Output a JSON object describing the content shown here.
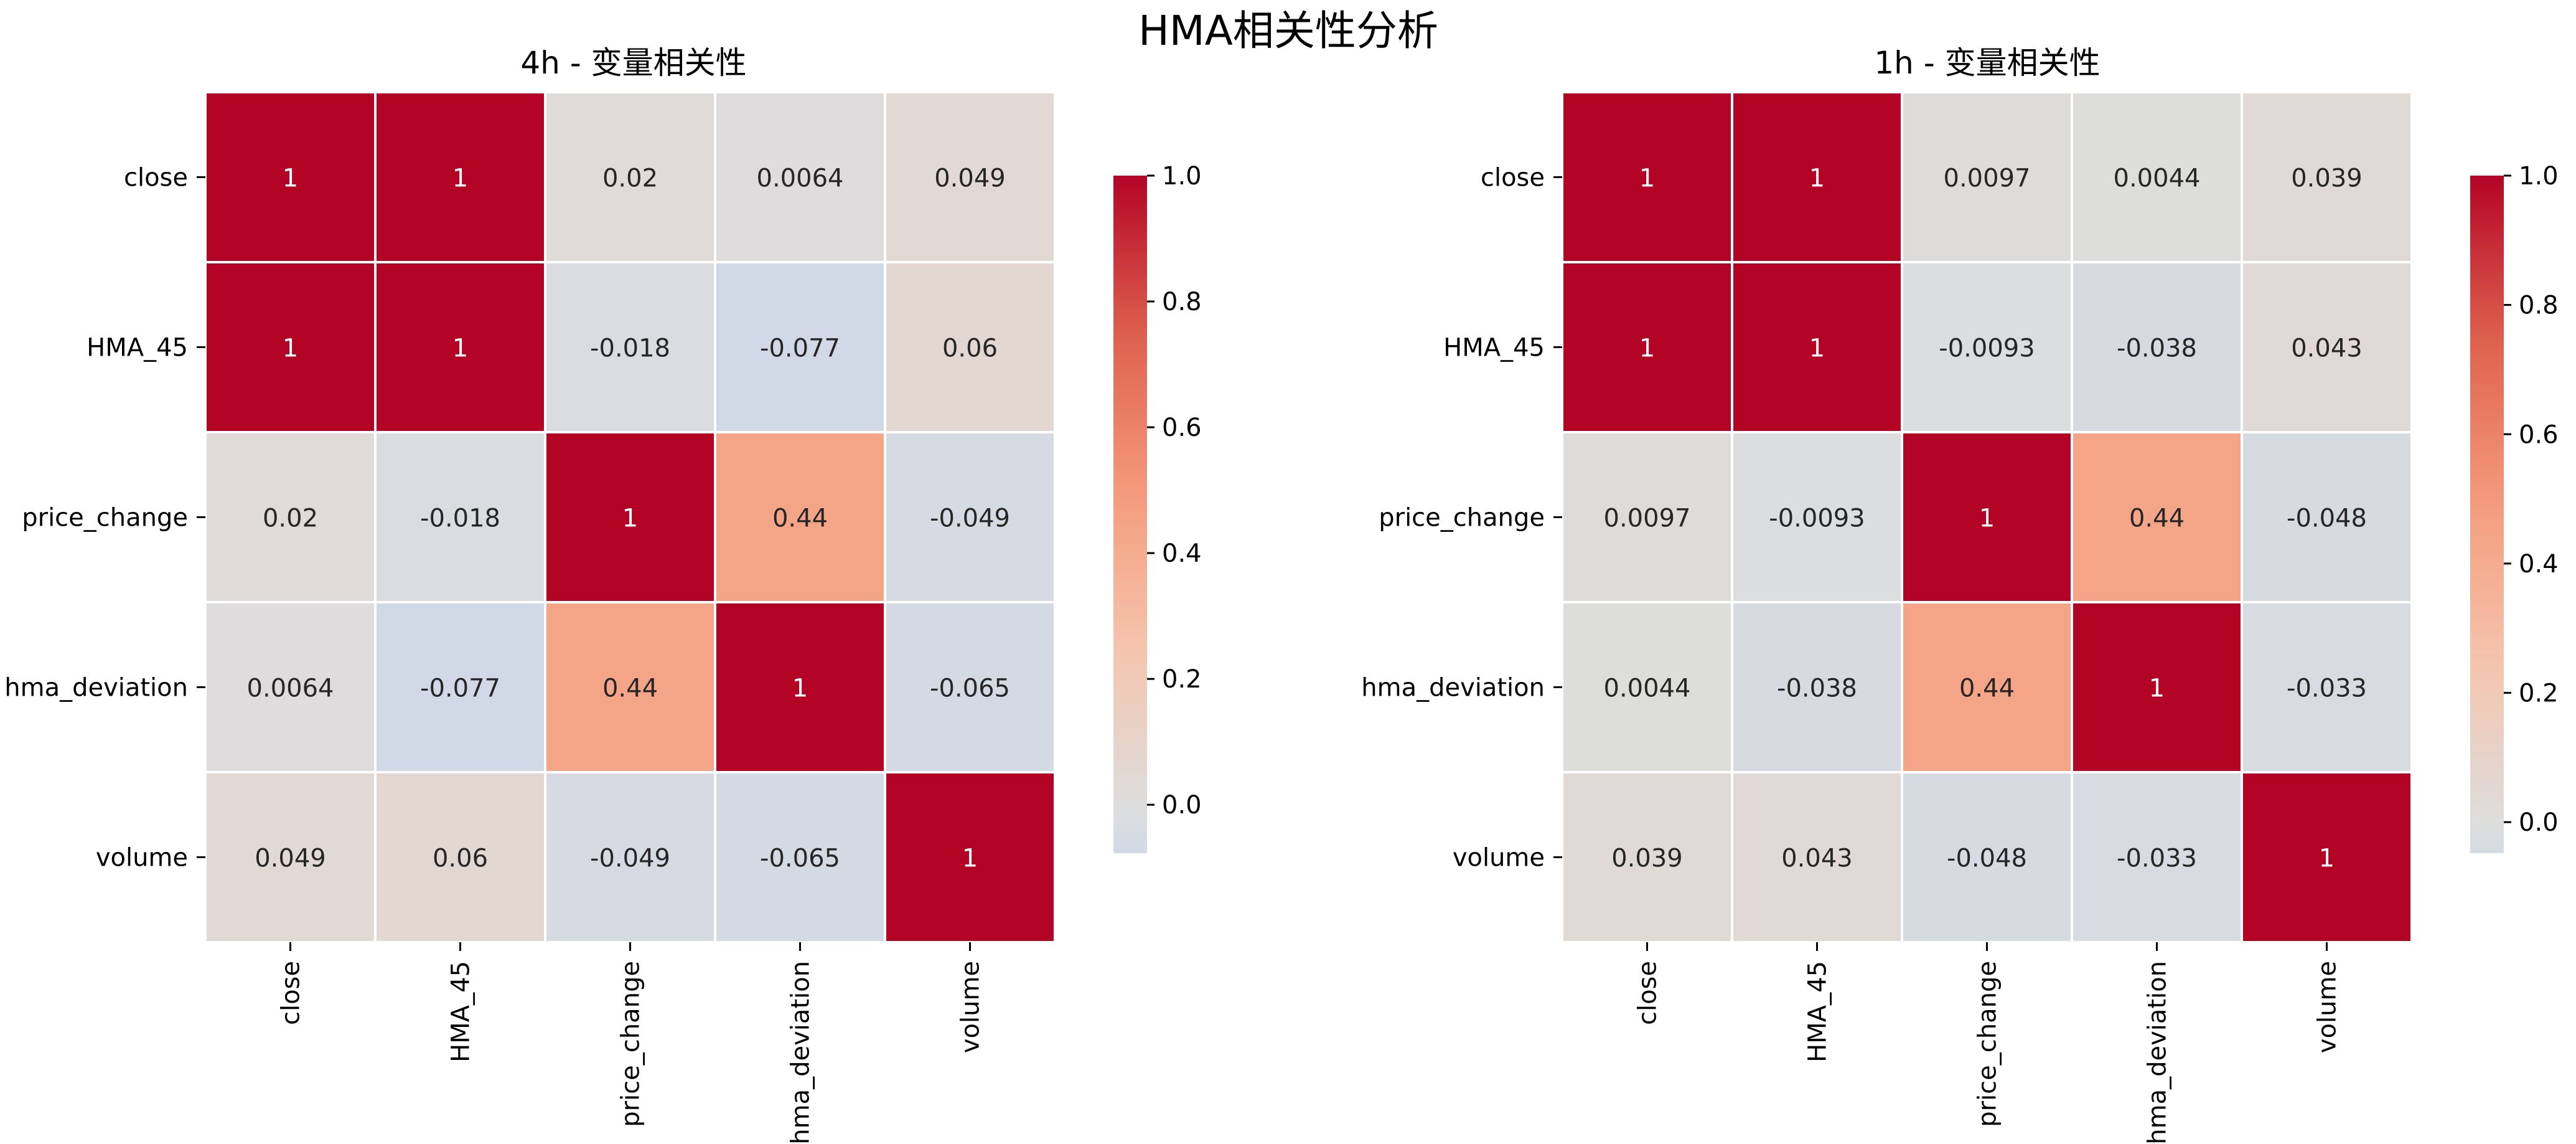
{
  "figure": {
    "title": "HMA相关性分析"
  },
  "chart_data": [
    {
      "type": "heatmap",
      "title": "4h - 变量相关性",
      "labels": [
        "close",
        "HMA_45",
        "price_change",
        "hma_deviation",
        "volume"
      ],
      "values": [
        [
          1,
          1,
          0.02,
          0.0064,
          0.049
        ],
        [
          1,
          1,
          -0.018,
          -0.077,
          0.06
        ],
        [
          0.02,
          -0.018,
          1,
          0.44,
          -0.049
        ],
        [
          0.0064,
          -0.077,
          0.44,
          1,
          -0.065
        ],
        [
          0.049,
          0.06,
          -0.049,
          -0.065,
          1
        ]
      ],
      "annotations": [
        [
          "1",
          "1",
          "0.02",
          "0.0064",
          "0.049"
        ],
        [
          "1",
          "1",
          "-0.018",
          "-0.077",
          "0.06"
        ],
        [
          "0.02",
          "-0.018",
          "1",
          "0.44",
          "-0.049"
        ],
        [
          "0.0064",
          "-0.077",
          "0.44",
          "1",
          "-0.065"
        ],
        [
          "0.049",
          "0.06",
          "-0.049",
          "-0.065",
          "1"
        ]
      ],
      "colorbar": {
        "range": [
          -0.077,
          1
        ],
        "ticks": [
          0.0,
          0.2,
          0.4,
          0.6,
          0.8,
          1.0
        ],
        "tick_labels": [
          "0.0",
          "0.2",
          "0.4",
          "0.6",
          "0.8",
          "1.0"
        ],
        "colormap": "coolwarm",
        "center": 0
      }
    },
    {
      "type": "heatmap",
      "title": "1h - 变量相关性",
      "labels": [
        "close",
        "HMA_45",
        "price_change",
        "hma_deviation",
        "volume"
      ],
      "values": [
        [
          1,
          1,
          0.0097,
          0.0044,
          0.039
        ],
        [
          1,
          1,
          -0.0093,
          -0.038,
          0.043
        ],
        [
          0.0097,
          -0.0093,
          1,
          0.44,
          -0.048
        ],
        [
          0.0044,
          -0.038,
          0.44,
          1,
          -0.033
        ],
        [
          0.039,
          0.043,
          -0.048,
          -0.033,
          1
        ]
      ],
      "annotations": [
        [
          "1",
          "1",
          "0.0097",
          "0.0044",
          "0.039"
        ],
        [
          "1",
          "1",
          "-0.0093",
          "-0.038",
          "0.043"
        ],
        [
          "0.0097",
          "-0.0093",
          "1",
          "0.44",
          "-0.048"
        ],
        [
          "0.0044",
          "-0.038",
          "0.44",
          "1",
          "-0.033"
        ],
        [
          "0.039",
          "0.043",
          "-0.048",
          "-0.033",
          "1"
        ]
      ],
      "colorbar": {
        "range": [
          -0.048,
          1
        ],
        "ticks": [
          0.0,
          0.2,
          0.4,
          0.6,
          0.8,
          1.0
        ],
        "tick_labels": [
          "0.0",
          "0.2",
          "0.4",
          "0.6",
          "0.8",
          "1.0"
        ],
        "colormap": "coolwarm",
        "center": 0
      }
    }
  ]
}
